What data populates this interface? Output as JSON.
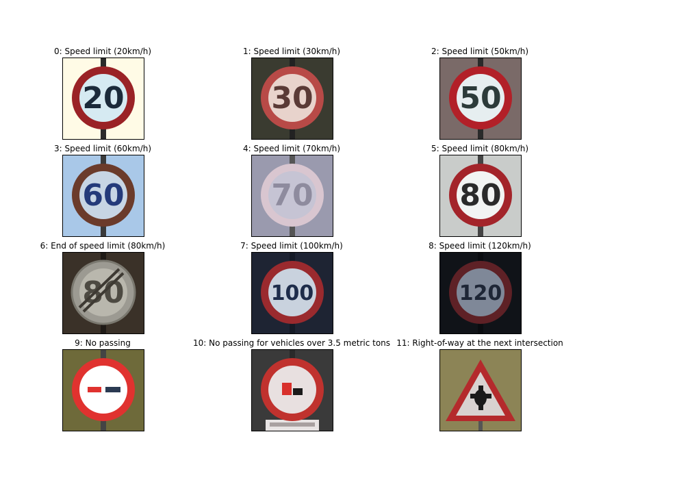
{
  "signs": [
    {
      "label": "0: Speed limit (20km/h)",
      "number": "20",
      "icon": "speed-limit-20-sign-icon",
      "bg": "#fffbe6",
      "ring": "#9a2226",
      "face": "#d6eaf2",
      "ink": "#1b2a3a",
      "pole": "#2b2b2b"
    },
    {
      "label": "1: Speed limit (30km/h)",
      "number": "30",
      "icon": "speed-limit-30-sign-icon",
      "bg": "#3a3b30",
      "ring": "#b84a47",
      "face": "#e8d3cc",
      "ink": "#5a3a36",
      "pole": "#222"
    },
    {
      "label": "2: Speed limit (50km/h)",
      "number": "50",
      "icon": "speed-limit-50-sign-icon",
      "bg": "#7a6a68",
      "ring": "#b22028",
      "face": "#e6eef0",
      "ink": "#2c3b3a",
      "pole": "#2a2a2a"
    },
    {
      "label": "3: Speed limit (60km/h)",
      "number": "60",
      "icon": "speed-limit-60-sign-icon",
      "bg": "#a9c8e8",
      "ring": "#6b3b2b",
      "face": "#c7d5e4",
      "ink": "#243a7a",
      "pole": "#3a3a3a"
    },
    {
      "label": "4: Speed limit (70km/h)",
      "number": "70",
      "icon": "speed-limit-70-sign-icon",
      "bg": "#9a9aae",
      "ring": "#d9c6d0",
      "face": "#c6c4d4",
      "ink": "#8e8b9e",
      "pole": "#555"
    },
    {
      "label": "5: Speed limit (80km/h)",
      "number": "80",
      "icon": "speed-limit-80-sign-icon",
      "bg": "#c9ccca",
      "ring": "#a3242a",
      "face": "#f2f4f3",
      "ink": "#2a2a2a",
      "pole": "#444"
    },
    {
      "label": "6: End of speed limit (80km/h)",
      "number": "80",
      "icon": "end-speed-limit-80-sign-icon",
      "bg": "#3a3128",
      "ring": "#9c9a92",
      "face": "#b9b7ad",
      "ink": "#4d4a42",
      "pole": "#1f1a16"
    },
    {
      "label": "7: Speed limit (100km/h)",
      "number": "100",
      "icon": "speed-limit-100-sign-icon",
      "bg": "#1e2433",
      "ring": "#9a2a2e",
      "face": "#c9d2de",
      "ink": "#1e2c4a",
      "pole": "#141a26"
    },
    {
      "label": "8: Speed limit (120km/h)",
      "number": "120",
      "icon": "speed-limit-120-sign-icon",
      "bg": "#101318",
      "ring": "#5e2126",
      "face": "#7f8898",
      "ink": "#1e2636",
      "pole": "#0a0c10"
    },
    {
      "label": "9: No passing",
      "number": "",
      "icon": "no-passing-sign-icon",
      "bg": "#6e6a3a",
      "ring": "#e0322f",
      "face": "#ffffff",
      "ink": "#000",
      "pole": "#444"
    },
    {
      "label": "10: No passing for vehicles over 3.5 metric tons",
      "number": "",
      "icon": "no-passing-trucks-sign-icon",
      "bg": "#3a3a3a",
      "ring": "#c0322e",
      "face": "#e8e0e0",
      "ink": "#000",
      "pole": "#2a2a2a"
    },
    {
      "label": "11: Right-of-way at the next intersection",
      "number": "",
      "icon": "right-of-way-sign-icon",
      "bg": "#8c8456",
      "ring": "#b42a2c",
      "face": "#d8d2d0",
      "ink": "#1a1a1a",
      "pole": "#555"
    }
  ]
}
